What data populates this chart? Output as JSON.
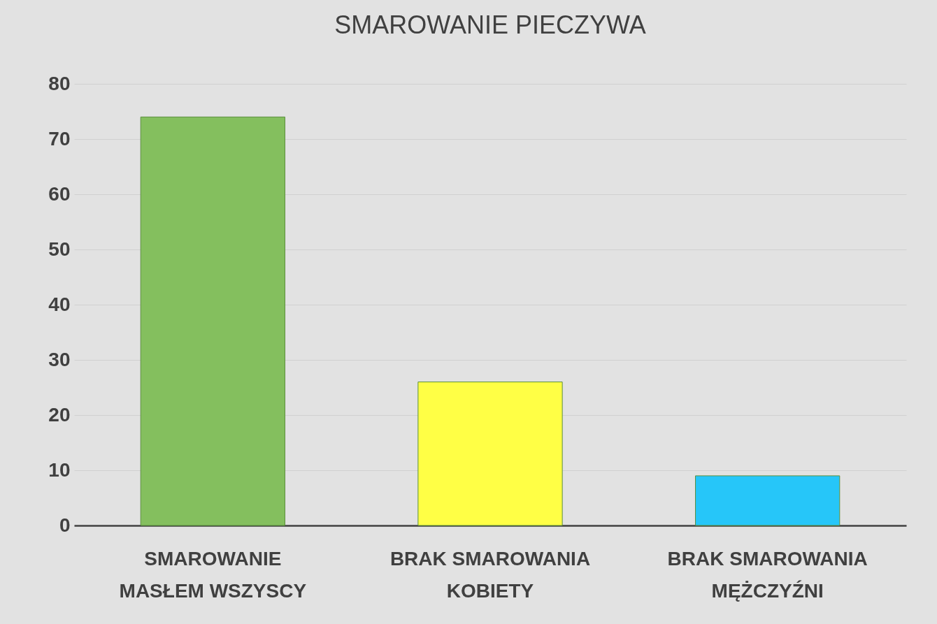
{
  "chart_data": {
    "type": "bar",
    "title": "SMAROWANIE PIECZYWA",
    "categories": [
      "SMAROWANIE MASŁEM WSZYSCY",
      "BRAK SMAROWANIA KOBIETY",
      "BRAK SMAROWANIA MĘŻCZYŹNI"
    ],
    "values": [
      74,
      26,
      9
    ],
    "colors": [
      "#84bf5e",
      "#ffff45",
      "#26c6f9"
    ],
    "ylim": [
      0,
      80
    ],
    "yticks": [
      0,
      10,
      20,
      30,
      40,
      50,
      60,
      70,
      80
    ],
    "grid": "y"
  }
}
